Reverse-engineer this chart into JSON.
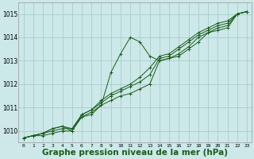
{
  "background_color": "#cce8e8",
  "grid_color": "#aacccc",
  "line_color": "#1a5c1a",
  "marker_color": "#1a5c1a",
  "title": "Graphe pression niveau de la mer (hPa)",
  "title_fontsize": 7.5,
  "title_color": "#1a5c1a",
  "title_bold": true,
  "ylim": [
    1009.5,
    1015.5
  ],
  "xlim": [
    -0.5,
    23.5
  ],
  "yticks": [
    1010,
    1011,
    1012,
    1013,
    1014,
    1015
  ],
  "xticks": [
    0,
    1,
    2,
    3,
    4,
    5,
    6,
    7,
    8,
    9,
    10,
    11,
    12,
    13,
    14,
    15,
    16,
    17,
    18,
    19,
    20,
    21,
    22,
    23
  ],
  "series": [
    [
      1009.7,
      1009.8,
      1009.8,
      1009.9,
      1010.0,
      1010.0,
      1010.6,
      1010.7,
      1011.1,
      1012.5,
      1013.3,
      1014.0,
      1013.8,
      1013.2,
      1013.0,
      1013.1,
      1013.2,
      1013.5,
      1013.8,
      1014.2,
      1014.3,
      1014.4,
      1015.0,
      1015.1
    ],
    [
      1009.7,
      1009.8,
      1009.9,
      1010.0,
      1010.1,
      1010.1,
      1010.6,
      1010.8,
      1011.1,
      1011.3,
      1011.5,
      1011.6,
      1011.8,
      1012.0,
      1013.0,
      1013.1,
      1013.3,
      1013.6,
      1014.0,
      1014.2,
      1014.4,
      1014.5,
      1015.0,
      1015.1
    ],
    [
      1009.7,
      1009.8,
      1009.9,
      1010.1,
      1010.2,
      1010.1,
      1010.7,
      1010.9,
      1011.2,
      1011.5,
      1011.7,
      1011.9,
      1012.1,
      1012.4,
      1013.1,
      1013.2,
      1013.5,
      1013.8,
      1014.1,
      1014.3,
      1014.5,
      1014.6,
      1015.0,
      1015.1
    ],
    [
      1009.7,
      1009.8,
      1009.9,
      1010.1,
      1010.2,
      1010.0,
      1010.7,
      1010.9,
      1011.3,
      1011.6,
      1011.8,
      1012.0,
      1012.3,
      1012.7,
      1013.2,
      1013.3,
      1013.6,
      1013.9,
      1014.2,
      1014.4,
      1014.6,
      1014.7,
      1015.0,
      1015.1
    ]
  ]
}
